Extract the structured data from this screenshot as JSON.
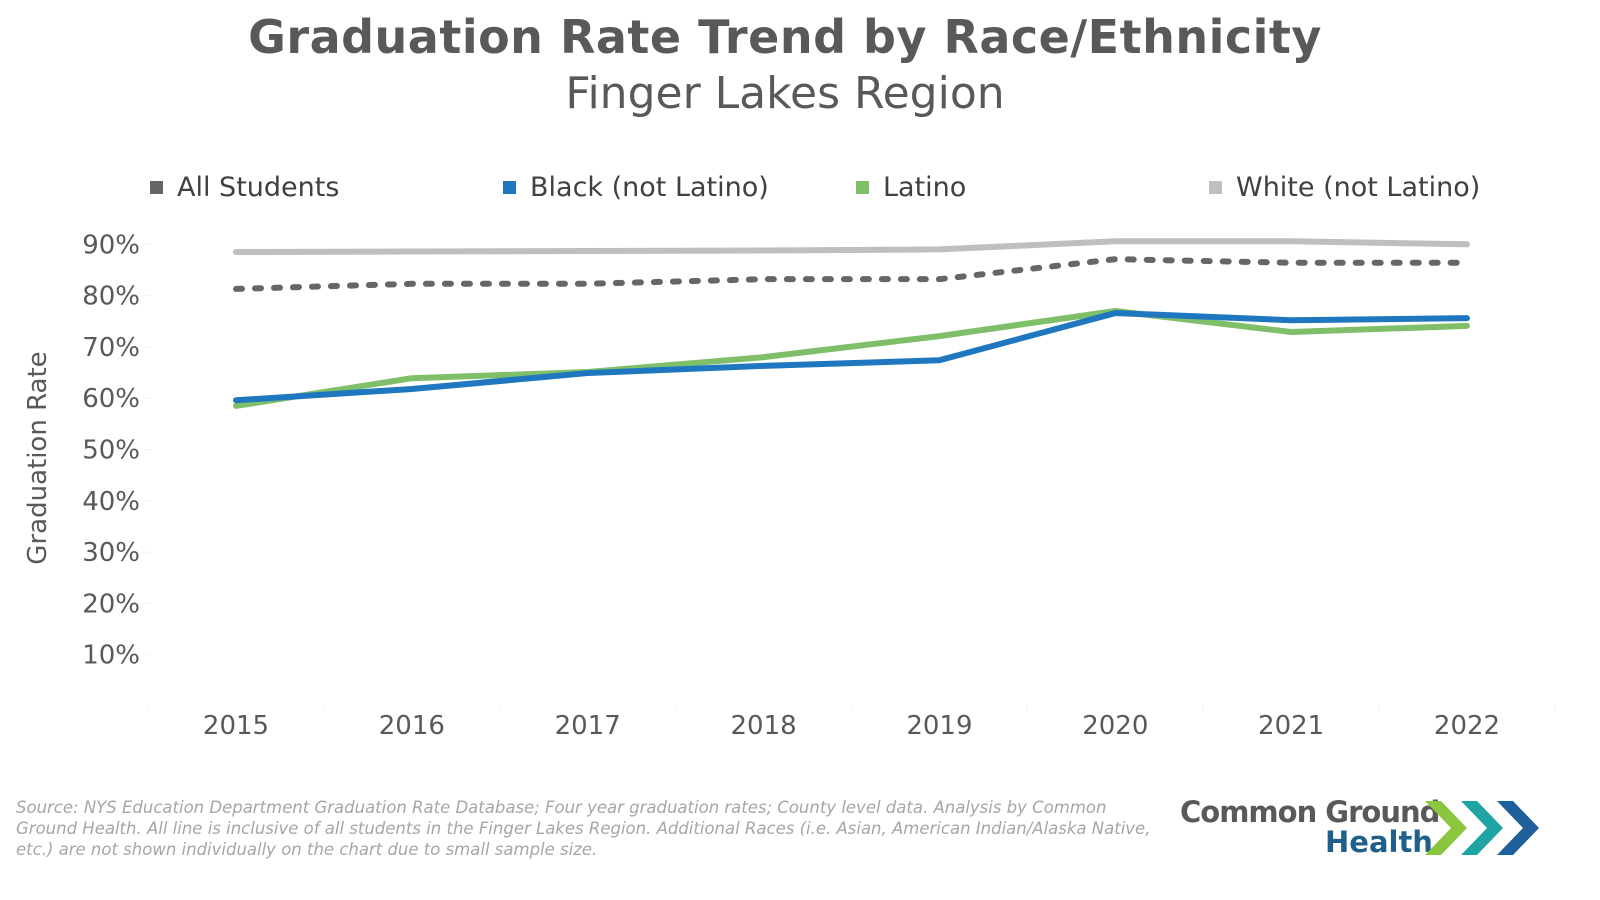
{
  "chart_data": {
    "type": "line",
    "title": "Graduation Rate Trend by Race/Ethnicity",
    "subtitle": "Finger Lakes Region",
    "xlabel": "",
    "ylabel": "Graduation Rate",
    "x": [
      "2015",
      "2016",
      "2017",
      "2018",
      "2019",
      "2020",
      "2021",
      "2022"
    ],
    "ylim": [
      0,
      100
    ],
    "yticks": [
      {
        "value": 10,
        "label": "10%"
      },
      {
        "value": 20,
        "label": "20%"
      },
      {
        "value": 30,
        "label": "30%"
      },
      {
        "value": 40,
        "label": "40%"
      },
      {
        "value": 50,
        "label": "50%"
      },
      {
        "value": 60,
        "label": "60%"
      },
      {
        "value": 70,
        "label": "70%"
      },
      {
        "value": 80,
        "label": "80%"
      },
      {
        "value": 90,
        "label": "90%"
      }
    ],
    "grid": false,
    "legend_position": "top",
    "series": [
      {
        "name": "All Students",
        "color": "#666666",
        "style": "dotted",
        "values": [
          81.3,
          82.3,
          82.3,
          83.2,
          83.2,
          87.1,
          86.4,
          86.4
        ]
      },
      {
        "name": "Black (not Latino)",
        "color": "#1f77bf",
        "style": "solid",
        "values": [
          59.6,
          61.8,
          64.9,
          66.3,
          67.4,
          76.6,
          75.2,
          75.6
        ]
      },
      {
        "name": "Latino",
        "color": "#7fbf6a",
        "style": "solid",
        "values": [
          58.5,
          63.9,
          65.1,
          68.0,
          72.1,
          77.0,
          72.9,
          74.1
        ]
      },
      {
        "name": "White (not Latino)",
        "color": "#bfbfbf",
        "style": "solid",
        "values": [
          88.5,
          88.6,
          88.7,
          88.8,
          89.0,
          90.6,
          90.6,
          90.0
        ]
      }
    ]
  },
  "footer": {
    "source_text": "Source: NYS Education Department Graduation Rate Database; Four year graduation rates; County level data. Analysis by Common Ground Health. All line is inclusive of all students in the Finger Lakes Region. Additional Races (i.e. Asian, American Indian/Alaska Native, etc.) are not shown individually on the chart due to small sample size.",
    "logo_line1": "Common Ground",
    "logo_line2": "Health"
  }
}
